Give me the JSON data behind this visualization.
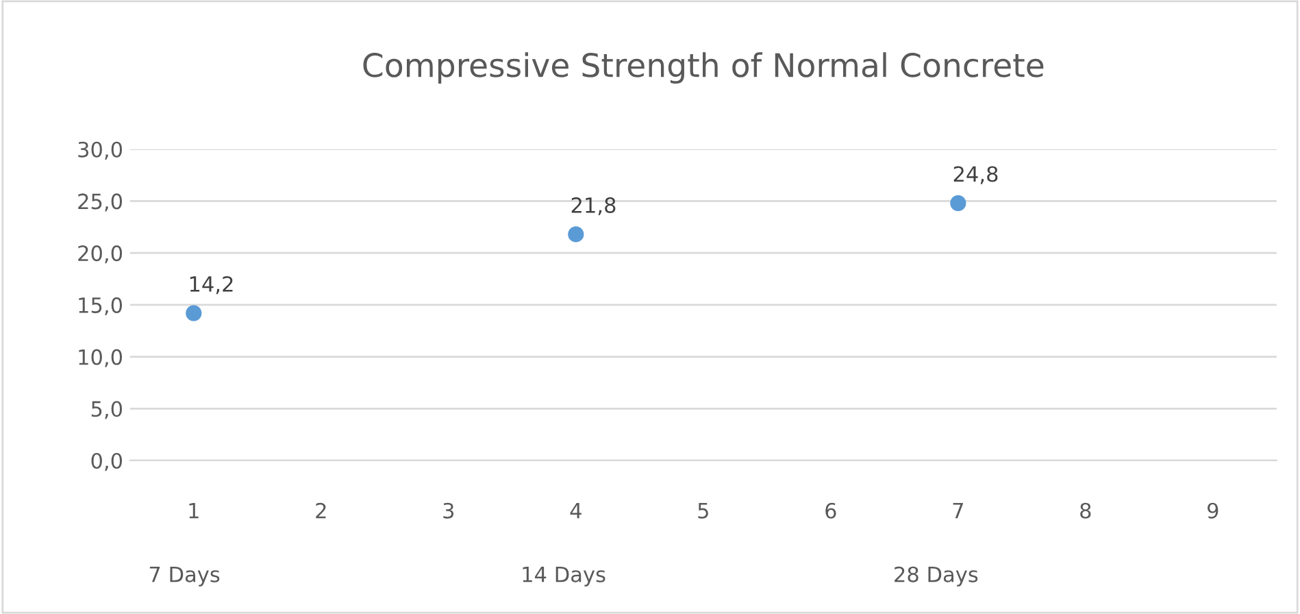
{
  "chart_data": {
    "type": "scatter",
    "title": "Compressive Strength of Normal Concrete",
    "x": [
      1,
      4,
      7
    ],
    "series": [
      {
        "color": "#5b9bd5",
        "values": [
          14.2,
          21.8,
          24.8
        ],
        "value_labels": [
          "14,2",
          "21,8",
          "24,8"
        ]
      }
    ],
    "xlim": [
      0.5,
      9.5
    ],
    "xticks": [
      1,
      2,
      3,
      4,
      5,
      6,
      7,
      8,
      9
    ],
    "ylim": [
      0,
      30
    ],
    "yticks": [
      {
        "value": 0,
        "label": "0,0"
      },
      {
        "value": 5,
        "label": "5,0"
      },
      {
        "value": 10,
        "label": "10,0"
      },
      {
        "value": 15,
        "label": "15,0"
      },
      {
        "value": 20,
        "label": "20,0"
      },
      {
        "value": 25,
        "label": "25,0"
      },
      {
        "value": 30,
        "label": "30,0"
      }
    ],
    "grid": "y",
    "marker": "circle",
    "annotations": [
      "7 Days",
      "14 Days",
      "28 Days"
    ]
  }
}
